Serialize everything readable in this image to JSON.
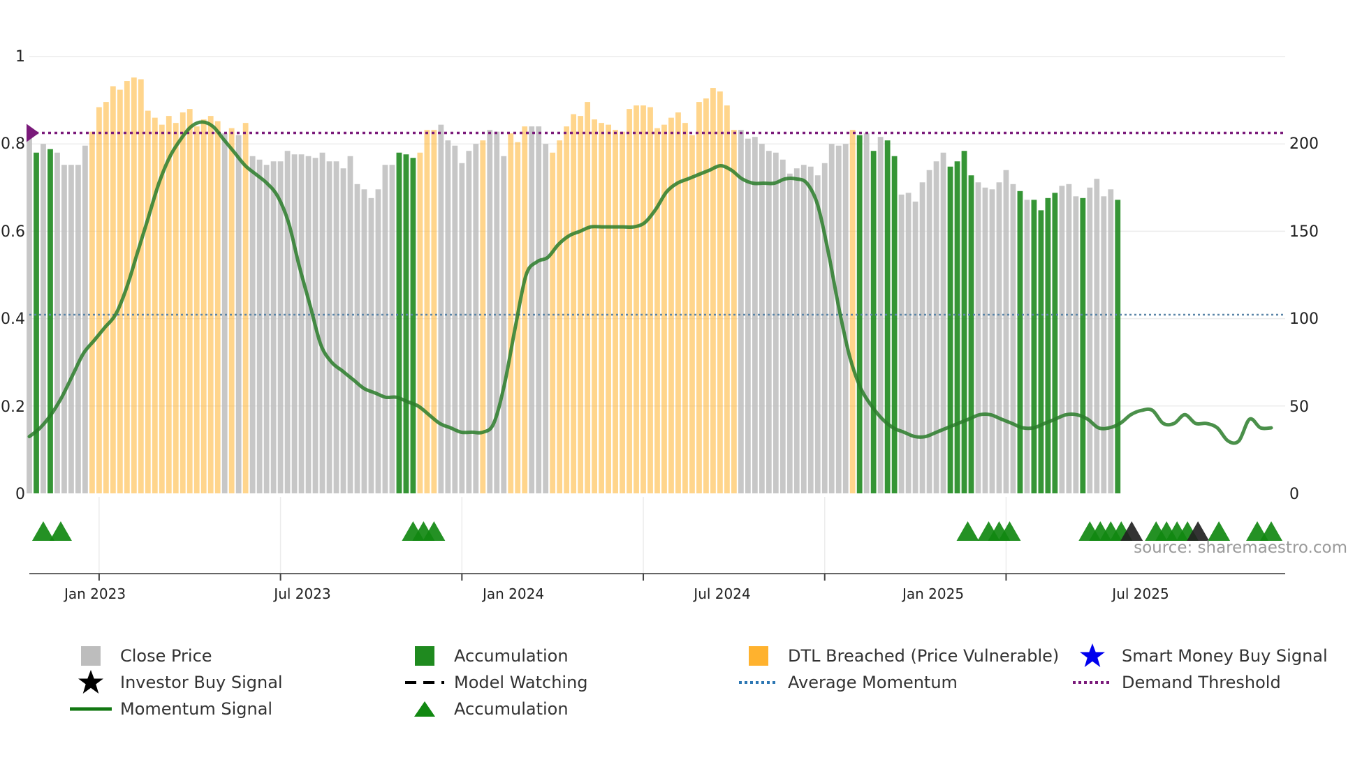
{
  "chart_data": {
    "type": "bar",
    "left_axis": {
      "range": [
        0,
        1
      ],
      "ticks": [
        "0",
        "0.2",
        "0.4",
        "0.6",
        "0.8",
        "1"
      ]
    },
    "right_axis": {
      "range": [
        0,
        250
      ],
      "ticks": [
        "0",
        "50",
        "100",
        "150",
        "200"
      ]
    },
    "x_ticks": [
      "Jan 2023",
      "Jul 2023",
      "Jan 2024",
      "Jul 2024",
      "Jan 2025",
      "Jul 2025"
    ],
    "x_range_weeks": [
      -10,
      170
    ],
    "x_tick_weeks": [
      0,
      26,
      52,
      78,
      104,
      130
    ],
    "demand_threshold": 0.825,
    "average_momentum": 0.409,
    "close_price": [
      208,
      195,
      200,
      197,
      195,
      188,
      188,
      188,
      199,
      207,
      221,
      224,
      233,
      231,
      236,
      238,
      237,
      219,
      215,
      211,
      216,
      212,
      218,
      220,
      210,
      214,
      216,
      213,
      206,
      209,
      205,
      212,
      193,
      191,
      188,
      190,
      190,
      196,
      194,
      194,
      193,
      192,
      195,
      190,
      190,
      186,
      193,
      177,
      174,
      169,
      174,
      188,
      188,
      195,
      194,
      192,
      195,
      208,
      208,
      211,
      202,
      199,
      189,
      196,
      200,
      202,
      208,
      207,
      193,
      206,
      201,
      210,
      210,
      210,
      200,
      195,
      202,
      210,
      217,
      216,
      224,
      214,
      212,
      211,
      208,
      207,
      220,
      222,
      222,
      221,
      209,
      211,
      215,
      218,
      212,
      205,
      224,
      226,
      232,
      230,
      222,
      208,
      208,
      203,
      204,
      200,
      196,
      195,
      191,
      183,
      186,
      188,
      187,
      182,
      189,
      200,
      199,
      200,
      208,
      205,
      206,
      196,
      204,
      202,
      193,
      171,
      172,
      167,
      178,
      185,
      190,
      195,
      187,
      190,
      196,
      182,
      178,
      175,
      174,
      178,
      185,
      177,
      173,
      168,
      168,
      162,
      169,
      172,
      176,
      177,
      170,
      169,
      175,
      180,
      170,
      174,
      168
    ],
    "bar_category": [
      "g",
      "a",
      "g",
      "a",
      "g",
      "g",
      "g",
      "g",
      "g",
      "d",
      "d",
      "d",
      "d",
      "d",
      "d",
      "d",
      "d",
      "d",
      "d",
      "d",
      "d",
      "d",
      "d",
      "d",
      "d",
      "d",
      "d",
      "d",
      "g",
      "d",
      "g",
      "d",
      "g",
      "g",
      "g",
      "g",
      "g",
      "g",
      "g",
      "g",
      "g",
      "g",
      "g",
      "g",
      "g",
      "g",
      "g",
      "g",
      "g",
      "g",
      "g",
      "g",
      "g",
      "a",
      "a",
      "a",
      "d",
      "d",
      "d",
      "g",
      "g",
      "g",
      "g",
      "g",
      "g",
      "d",
      "g",
      "g",
      "g",
      "d",
      "d",
      "d",
      "g",
      "g",
      "g",
      "d",
      "d",
      "d",
      "d",
      "d",
      "d",
      "d",
      "d",
      "d",
      "d",
      "d",
      "d",
      "d",
      "d",
      "d",
      "d",
      "d",
      "d",
      "d",
      "d",
      "d",
      "d",
      "d",
      "d",
      "d",
      "d",
      "d",
      "g",
      "g",
      "g",
      "g",
      "g",
      "g",
      "g",
      "g",
      "g",
      "g",
      "g",
      "g",
      "g",
      "g",
      "g",
      "g",
      "d",
      "a",
      "g",
      "a",
      "g",
      "a",
      "a",
      "g",
      "g",
      "g",
      "g",
      "g",
      "g",
      "g",
      "a",
      "a",
      "a",
      "a",
      "g",
      "g",
      "g",
      "g",
      "g",
      "g",
      "a",
      "g",
      "a",
      "a",
      "a",
      "a",
      "g",
      "g",
      "g",
      "a",
      "g",
      "g",
      "g",
      "g",
      "a"
    ],
    "momentum": [
      0.13,
      0.15,
      0.18,
      0.22,
      0.27,
      0.32,
      0.35,
      0.38,
      0.41,
      0.47,
      0.55,
      0.63,
      0.71,
      0.77,
      0.81,
      0.84,
      0.85,
      0.84,
      0.81,
      0.78,
      0.75,
      0.73,
      0.71,
      0.68,
      0.62,
      0.52,
      0.43,
      0.34,
      0.3,
      0.28,
      0.26,
      0.24,
      0.23,
      0.22,
      0.22,
      0.21,
      0.2,
      0.18,
      0.16,
      0.15,
      0.14,
      0.14,
      0.14,
      0.16,
      0.25,
      0.38,
      0.5,
      0.53,
      0.54,
      0.57,
      0.59,
      0.6,
      0.61,
      0.61,
      0.61,
      0.61,
      0.61,
      0.62,
      0.65,
      0.69,
      0.71,
      0.72,
      0.73,
      0.74,
      0.75,
      0.74,
      0.72,
      0.71,
      0.71,
      0.71,
      0.72,
      0.72,
      0.71,
      0.66,
      0.55,
      0.42,
      0.31,
      0.24,
      0.2,
      0.17,
      0.15,
      0.14,
      0.13,
      0.13,
      0.14,
      0.15,
      0.16,
      0.17,
      0.18,
      0.18,
      0.17,
      0.16,
      0.15,
      0.15,
      0.16,
      0.17,
      0.18,
      0.18,
      0.17,
      0.15,
      0.15,
      0.16,
      0.18,
      0.19,
      0.19,
      0.16,
      0.16,
      0.18,
      0.16,
      0.16,
      0.15,
      0.12,
      0.12,
      0.17,
      0.15,
      0.15
    ],
    "momentum_weeks_end": 168,
    "signal_markers": [
      {
        "week": -8,
        "type": "accumulation"
      },
      {
        "week": -5.5,
        "type": "accumulation"
      },
      {
        "week": 45,
        "type": "accumulation"
      },
      {
        "week": 46.5,
        "type": "accumulation"
      },
      {
        "week": 48,
        "type": "accumulation"
      },
      {
        "week": 124.5,
        "type": "accumulation"
      },
      {
        "week": 127.5,
        "type": "accumulation"
      },
      {
        "week": 129,
        "type": "accumulation"
      },
      {
        "week": 130.5,
        "type": "accumulation"
      },
      {
        "week": 142,
        "type": "accumulation"
      },
      {
        "week": 143.5,
        "type": "accumulation"
      },
      {
        "week": 145,
        "type": "accumulation"
      },
      {
        "week": 146.5,
        "type": "accumulation"
      },
      {
        "week": 148,
        "type": "investor"
      },
      {
        "week": 151.5,
        "type": "accumulation"
      },
      {
        "week": 153,
        "type": "accumulation"
      },
      {
        "week": 154.5,
        "type": "accumulation"
      },
      {
        "week": 156,
        "type": "accumulation"
      },
      {
        "week": 157.5,
        "type": "investor"
      },
      {
        "week": 160.5,
        "type": "accumulation"
      },
      {
        "week": 166,
        "type": "accumulation"
      },
      {
        "week": 168,
        "type": "accumulation"
      }
    ]
  },
  "colors": {
    "close_price": "#bdbdbd",
    "accumulation": "#1f8a1f",
    "dtl_breached": "#ffb22e",
    "momentum": "#2a7d2a",
    "average_momentum": "#5a85a8",
    "demand_threshold": "#7a1a7a",
    "smart_money": "#0000ee",
    "investor": "#000000",
    "marker": "#118811"
  },
  "source_label": "source: sharemaestro.com",
  "legend": [
    {
      "label": "Close Price",
      "icon": "gray-square-icon"
    },
    {
      "label": "Accumulation",
      "icon": "green-square-icon"
    },
    {
      "label": "DTL Breached (Price Vulnerable)",
      "icon": "orange-square-icon"
    },
    {
      "label": "Smart Money Buy Signal",
      "icon": "blue-star-icon"
    },
    {
      "label": "Investor Buy Signal",
      "icon": "black-star-icon"
    },
    {
      "label": "Model Watching",
      "icon": "dashed-line-icon"
    },
    {
      "label": "Average Momentum",
      "icon": "dotted-blue-line-icon"
    },
    {
      "label": "Demand Threshold",
      "icon": "dotted-purple-line-icon"
    },
    {
      "label": "Momentum Signal",
      "icon": "green-line-icon"
    },
    {
      "label": "Accumulation",
      "icon": "green-triangle-icon"
    }
  ]
}
